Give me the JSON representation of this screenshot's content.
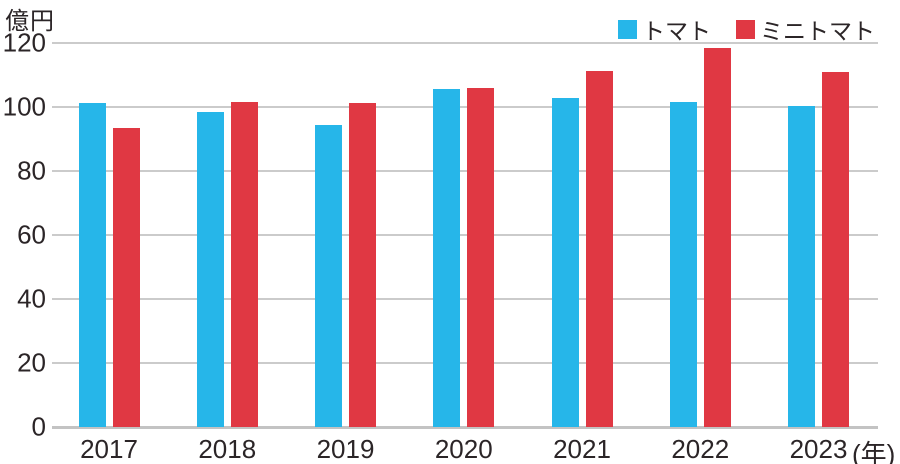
{
  "chart_data": {
    "type": "bar",
    "title": "",
    "ylabel": "億円",
    "x_suffix": "(年)",
    "ylim": [
      0,
      120
    ],
    "yticks": [
      0,
      20,
      40,
      60,
      80,
      100,
      120
    ],
    "grid": true,
    "legend_position": "top-right",
    "categories": [
      "2017",
      "2018",
      "2019",
      "2020",
      "2021",
      "2022",
      "2023"
    ],
    "series": [
      {
        "name": "トマト",
        "slug": "tomato",
        "color": "#26b6e9",
        "values": [
          101.3,
          98.3,
          94.5,
          105.6,
          102.8,
          101.7,
          100.3
        ]
      },
      {
        "name": "ミニトマト",
        "slug": "mini-tomato",
        "color": "#e03843",
        "values": [
          93.4,
          101.7,
          101.3,
          105.8,
          111.4,
          118.3,
          111.0
        ]
      }
    ]
  },
  "colors": {
    "text": "#2b2527",
    "gridline": "#cbcbcb",
    "baseline": "#c3c3c3",
    "background": "#ffffff"
  }
}
